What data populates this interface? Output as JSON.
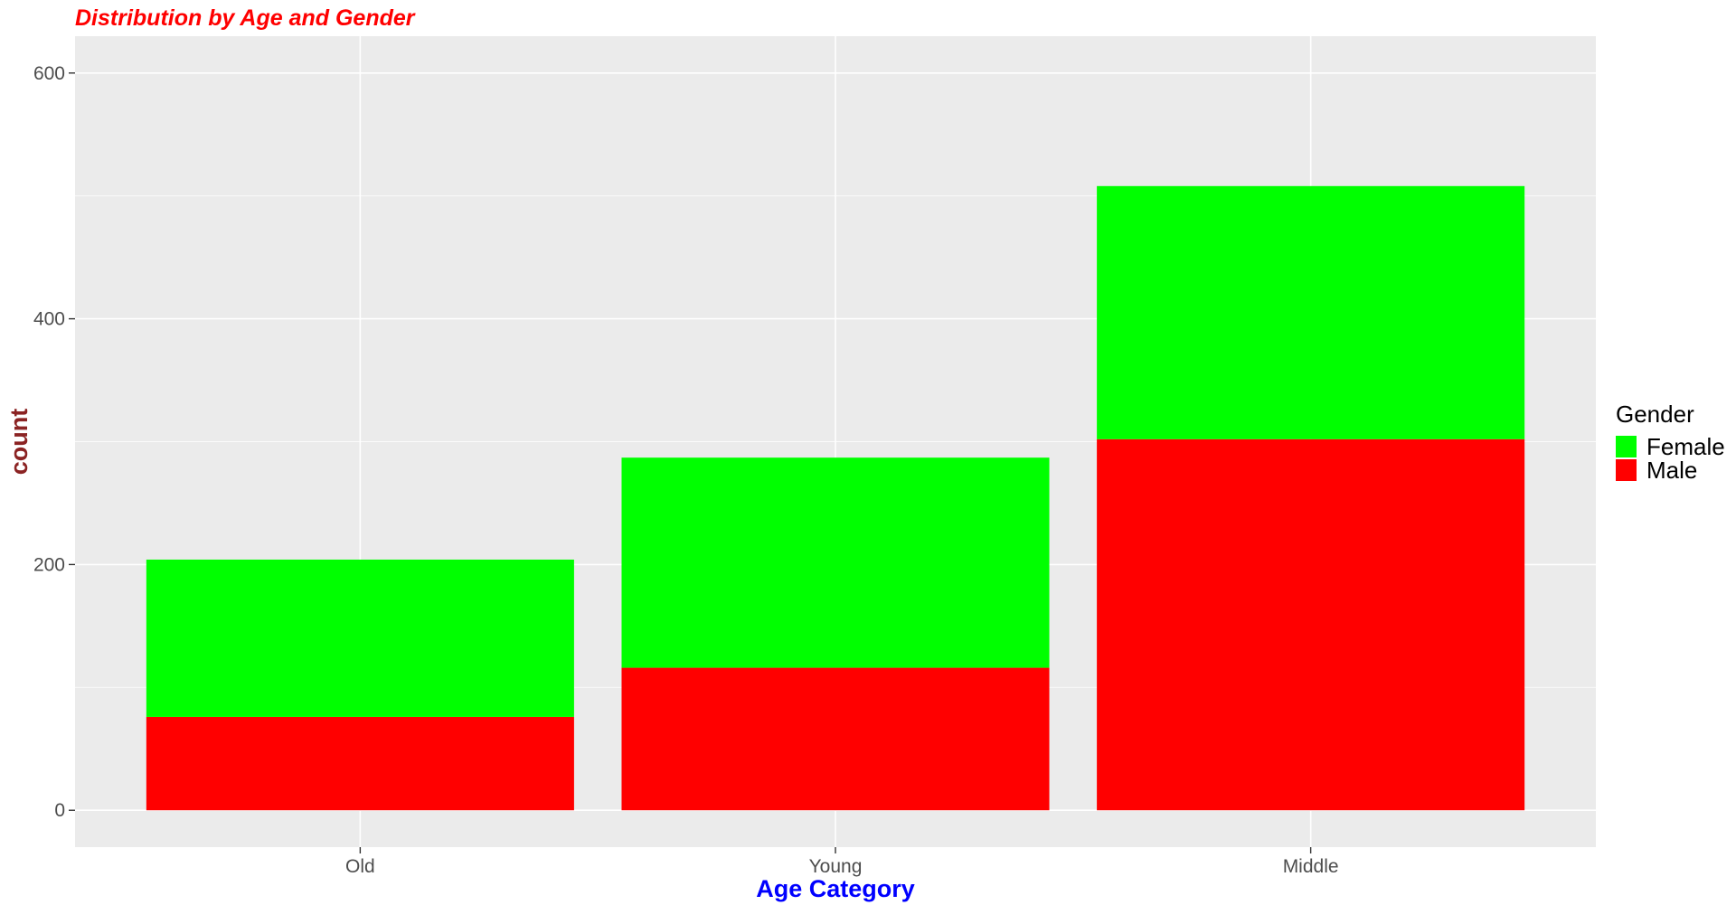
{
  "chart_data": {
    "type": "bar",
    "stacked": true,
    "title": "Distribution by Age and Gender",
    "xlabel": "Age Category",
    "ylabel": "count",
    "categories": [
      "Old",
      "Young",
      "Middle"
    ],
    "series": [
      {
        "name": "Male",
        "color": "#ff0000",
        "values": [
          76,
          116,
          302
        ]
      },
      {
        "name": "Female",
        "color": "#00ff00",
        "values": [
          128,
          171,
          206
        ]
      }
    ],
    "ylim": [
      -30,
      630
    ],
    "yticks": [
      0,
      200,
      400,
      600
    ],
    "grid": true,
    "legend": {
      "title": "Gender",
      "position": "right",
      "entries": [
        "Female",
        "Male"
      ]
    },
    "colors": {
      "title": "#ff0000",
      "xlabel": "#0000ff",
      "ylabel": "#8b2323",
      "panel_background": "#ebebeb",
      "grid": "#ffffff"
    }
  }
}
